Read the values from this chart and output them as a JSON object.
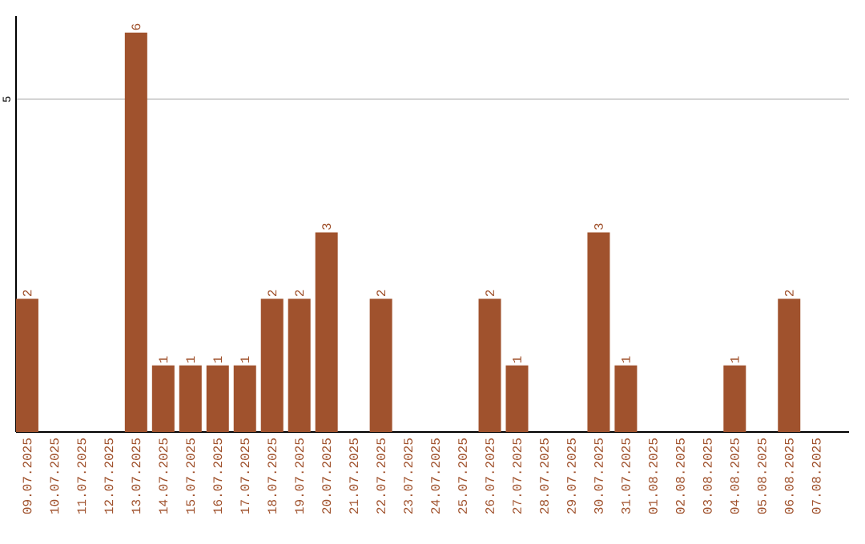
{
  "chart_data": {
    "type": "bar",
    "categories": [
      "09.07.2025",
      "10.07.2025",
      "11.07.2025",
      "12.07.2025",
      "13.07.2025",
      "14.07.2025",
      "15.07.2025",
      "16.07.2025",
      "17.07.2025",
      "18.07.2025",
      "19.07.2025",
      "20.07.2025",
      "21.07.2025",
      "22.07.2025",
      "23.07.2025",
      "24.07.2025",
      "25.07.2025",
      "26.07.2025",
      "27.07.2025",
      "28.07.2025",
      "29.07.2025",
      "30.07.2025",
      "31.07.2025",
      "01.08.2025",
      "02.08.2025",
      "03.08.2025",
      "04.08.2025",
      "05.08.2025",
      "06.08.2025",
      "07.08.2025"
    ],
    "values": [
      2,
      0,
      0,
      0,
      6,
      1,
      1,
      1,
      1,
      2,
      2,
      3,
      0,
      2,
      0,
      0,
      0,
      2,
      1,
      0,
      0,
      3,
      1,
      0,
      0,
      0,
      1,
      0,
      2,
      0
    ],
    "value_labels": [
      "2",
      null,
      null,
      null,
      "6",
      "1",
      "1",
      "1",
      "1",
      "2",
      "2",
      "3",
      null,
      "2",
      null,
      null,
      null,
      "2",
      "1",
      null,
      null,
      "3",
      "1",
      null,
      null,
      null,
      "1",
      null,
      "2",
      null
    ],
    "color": "#a0522d",
    "ylim": [
      0,
      6.25
    ],
    "yticks": [
      5
    ],
    "grid": "y"
  }
}
